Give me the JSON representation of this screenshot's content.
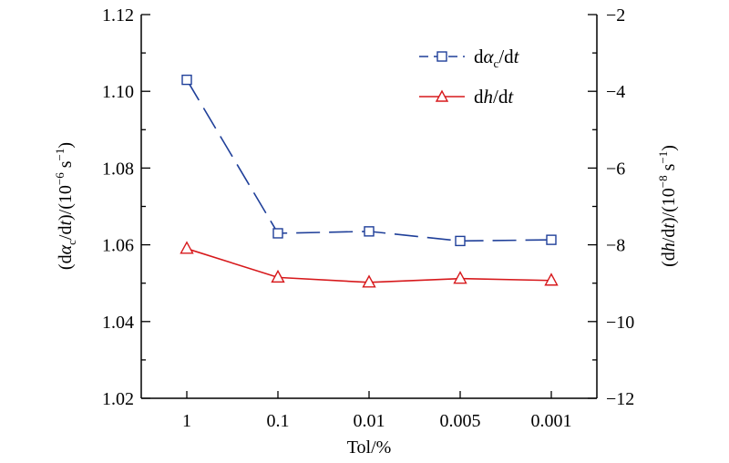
{
  "chart_data": {
    "type": "line",
    "title": "",
    "xlabel": "Tol/%",
    "ylabel_left": "(dα_c/dt)/(10^-6 s^-1)",
    "ylabel_right": "(dh/dt)/(10^-8 s^-1)",
    "categories": [
      "1",
      "0.1",
      "0.01",
      "0.005",
      "0.001"
    ],
    "left_axis": {
      "ylim": [
        1.02,
        1.12
      ],
      "ticks": [
        1.02,
        1.04,
        1.06,
        1.08,
        1.1,
        1.12
      ],
      "tick_labels": [
        "1.02",
        "1.04",
        "1.06",
        "1.08",
        "1.10",
        "1.12"
      ]
    },
    "right_axis": {
      "ylim": [
        -12,
        -2
      ],
      "ticks": [
        -12,
        -10,
        -8,
        -6,
        -4,
        -2
      ],
      "tick_labels": [
        "−12",
        "−10",
        "−8",
        "−6",
        "−4",
        "−2"
      ]
    },
    "series": [
      {
        "name": "dα_c/dt",
        "axis": "left",
        "color": "#1f3f99",
        "marker": "square",
        "line": "dashed",
        "values": [
          1.103,
          1.063,
          1.0635,
          1.061,
          1.0613
        ]
      },
      {
        "name": "dh/dt",
        "axis": "right",
        "color": "#d7191c",
        "marker": "triangle",
        "line": "solid",
        "values": [
          -8.1,
          -8.85,
          -8.98,
          -8.88,
          -8.93
        ]
      }
    ],
    "grid": false,
    "legend_position": "top-right"
  }
}
